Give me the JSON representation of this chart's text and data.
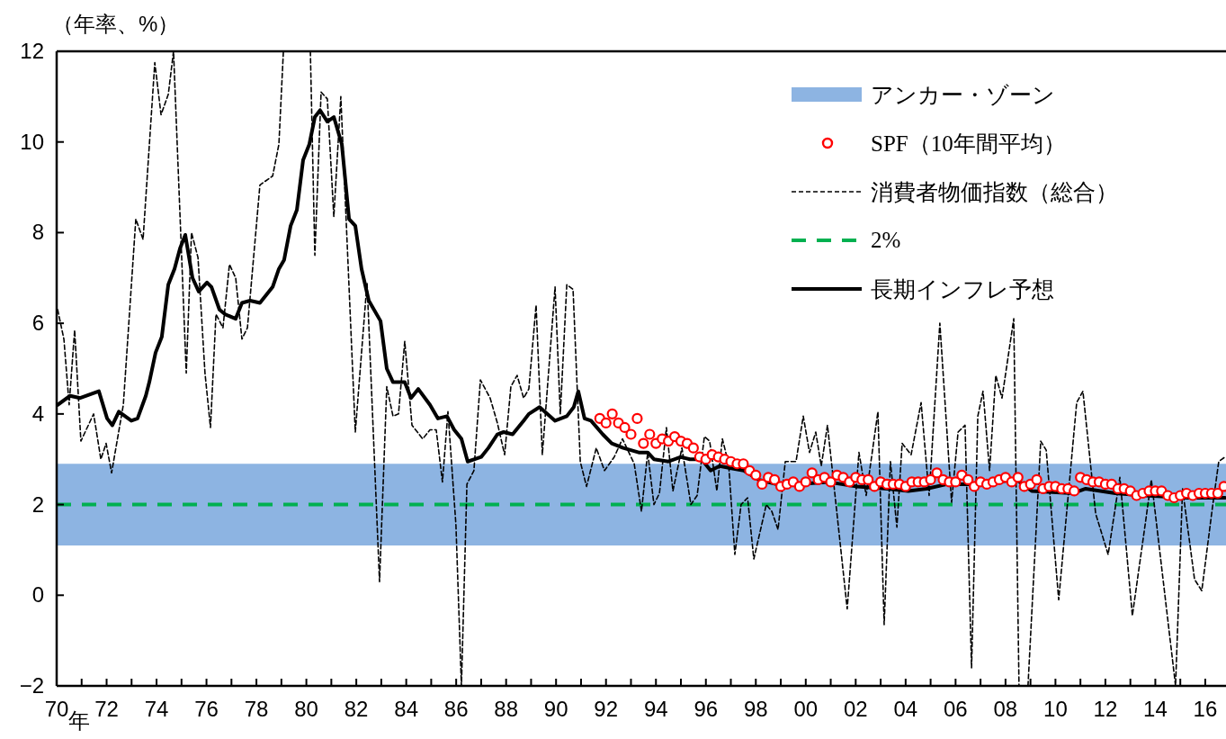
{
  "chart_data": {
    "type": "line",
    "ylabel": "（年率、%）",
    "annotations": [
      "年"
    ],
    "xlim": [
      1970,
      2016.83
    ],
    "xticks": [
      {
        "value": 1970,
        "label": "70"
      },
      {
        "value": 1971,
        "label": null
      },
      {
        "value": 1972,
        "label": "72"
      },
      {
        "value": 1973,
        "label": null
      },
      {
        "value": 1974,
        "label": "74"
      },
      {
        "value": 1975,
        "label": null
      },
      {
        "value": 1976,
        "label": "76"
      },
      {
        "value": 1977,
        "label": null
      },
      {
        "value": 1978,
        "label": "78"
      },
      {
        "value": 1979,
        "label": null
      },
      {
        "value": 1980,
        "label": "80"
      },
      {
        "value": 1981,
        "label": null
      },
      {
        "value": 1982,
        "label": "82"
      },
      {
        "value": 1983,
        "label": null
      },
      {
        "value": 1984,
        "label": "84"
      },
      {
        "value": 1985,
        "label": null
      },
      {
        "value": 1986,
        "label": "86"
      },
      {
        "value": 1987,
        "label": null
      },
      {
        "value": 1988,
        "label": "88"
      },
      {
        "value": 1989,
        "label": null
      },
      {
        "value": 1990,
        "label": "90"
      },
      {
        "value": 1991,
        "label": null
      },
      {
        "value": 1992,
        "label": "92"
      },
      {
        "value": 1993,
        "label": null
      },
      {
        "value": 1994,
        "label": "94"
      },
      {
        "value": 1995,
        "label": null
      },
      {
        "value": 1996,
        "label": "96"
      },
      {
        "value": 1997,
        "label": null
      },
      {
        "value": 1998,
        "label": "98"
      },
      {
        "value": 1999,
        "label": null
      },
      {
        "value": 2000,
        "label": "00"
      },
      {
        "value": 2001,
        "label": null
      },
      {
        "value": 2002,
        "label": "02"
      },
      {
        "value": 2003,
        "label": null
      },
      {
        "value": 2004,
        "label": "04"
      },
      {
        "value": 2005,
        "label": null
      },
      {
        "value": 2006,
        "label": "06"
      },
      {
        "value": 2007,
        "label": null
      },
      {
        "value": 2008,
        "label": "08"
      },
      {
        "value": 2009,
        "label": null
      },
      {
        "value": 2010,
        "label": "10"
      },
      {
        "value": 2011,
        "label": null
      },
      {
        "value": 2012,
        "label": "12"
      },
      {
        "value": 2013,
        "label": null
      },
      {
        "value": 2014,
        "label": "14"
      },
      {
        "value": 2015,
        "label": null
      },
      {
        "value": 2016,
        "label": "16"
      }
    ],
    "ylim": [
      -2,
      12
    ],
    "yticks": [
      {
        "value": -2,
        "label": "−2"
      },
      0,
      2,
      4,
      6,
      8,
      10,
      12
    ],
    "legend": "top right",
    "bands": [
      {
        "axis": "y",
        "from": 1.1,
        "to": 2.9,
        "label": "アンカー・ゾーン",
        "color": "#8db4e2"
      }
    ],
    "ref_lines": [
      {
        "axis": "y",
        "value": 2,
        "label": "2%",
        "color": "#00b050",
        "line_style": "dashed"
      }
    ],
    "series": [
      {
        "name": "SPF（10年間平均）",
        "type": "scatter",
        "color": "#ff0000",
        "marker": "circle",
        "x": [
          1991.75,
          1992,
          1992.25,
          1992.5,
          1992.75,
          1993,
          1993.25,
          1993.5,
          1993.75,
          1994,
          1994.25,
          1994.5,
          1994.75,
          1995,
          1995.25,
          1995.5,
          1995.75,
          1996,
          1996.25,
          1996.5,
          1996.75,
          1997,
          1997.25,
          1997.5,
          1997.75,
          1998,
          1998.25,
          1998.5,
          1998.75,
          1999,
          1999.25,
          1999.5,
          1999.75,
          2000,
          2000.25,
          2000.5,
          2000.75,
          2001,
          2001.25,
          2001.5,
          2001.75,
          2002,
          2002.25,
          2002.5,
          2002.75,
          2003,
          2003.25,
          2003.5,
          2003.75,
          2004,
          2004.25,
          2004.5,
          2004.75,
          2005,
          2005.25,
          2005.5,
          2005.75,
          2006,
          2006.25,
          2006.5,
          2006.75,
          2007,
          2007.25,
          2007.5,
          2007.75,
          2008,
          2008.25,
          2008.5,
          2008.75,
          2009,
          2009.25,
          2009.5,
          2009.75,
          2010,
          2010.25,
          2010.5,
          2010.75,
          2011,
          2011.25,
          2011.5,
          2011.75,
          2012,
          2012.25,
          2012.5,
          2012.75,
          2013,
          2013.25,
          2013.5,
          2013.75,
          2014,
          2014.25,
          2014.5,
          2014.75,
          2015,
          2015.25,
          2015.5,
          2015.75,
          2016,
          2016.25,
          2016.5,
          2016.75
        ],
        "values": [
          3.9,
          3.8,
          4.0,
          3.8,
          3.7,
          3.55,
          3.9,
          3.35,
          3.55,
          3.35,
          3.45,
          3.4,
          3.5,
          3.4,
          3.35,
          3.25,
          3.05,
          3.0,
          3.1,
          3.05,
          3.0,
          2.95,
          2.9,
          2.9,
          2.75,
          2.65,
          2.45,
          2.6,
          2.55,
          2.4,
          2.45,
          2.5,
          2.4,
          2.5,
          2.7,
          2.55,
          2.6,
          2.5,
          2.65,
          2.6,
          2.5,
          2.6,
          2.55,
          2.55,
          2.4,
          2.5,
          2.45,
          2.45,
          2.45,
          2.4,
          2.5,
          2.5,
          2.5,
          2.55,
          2.7,
          2.55,
          2.5,
          2.5,
          2.65,
          2.55,
          2.4,
          2.5,
          2.45,
          2.5,
          2.55,
          2.6,
          2.5,
          2.6,
          2.4,
          2.45,
          2.55,
          2.35,
          2.4,
          2.4,
          2.35,
          2.35,
          2.3,
          2.6,
          2.55,
          2.5,
          2.5,
          2.45,
          2.45,
          2.35,
          2.35,
          2.3,
          2.2,
          2.25,
          2.3,
          2.3,
          2.3,
          2.2,
          2.15,
          2.2,
          2.25,
          2.2,
          2.25,
          2.25,
          2.25,
          2.25,
          2.4
        ]
      },
      {
        "name": "消費者物価指数（総合）",
        "color": "#000000",
        "marker": "none",
        "line_style": "dashed",
        "x": [
          1970.04,
          1970.29,
          1970.5,
          1970.72,
          1970.97,
          1971.48,
          1971.77,
          1971.98,
          1972.2,
          1972.67,
          1973.17,
          1973.46,
          1973.93,
          1974.18,
          1974.47,
          1974.68,
          1975.19,
          1975.4,
          1975.66,
          1975.94,
          1976.16,
          1976.38,
          1976.66,
          1976.92,
          1977.17,
          1977.42,
          1977.64,
          1978.14,
          1978.65,
          1978.9,
          1979.08,
          1979.6,
          1980.16,
          1980.34,
          1980.59,
          1980.84,
          1981.1,
          1981.38,
          1981.96,
          1982.43,
          1982.93,
          1983.22,
          1983.47,
          1983.69,
          1983.94,
          1984.23,
          1984.66,
          1984.95,
          1985.2,
          1985.45,
          1985.67,
          1985.99,
          1986.21,
          1986.43,
          1986.71,
          1986.97,
          1987.36,
          1987.65,
          1987.94,
          1988.19,
          1988.44,
          1988.7,
          1988.91,
          1989.2,
          1989.45,
          1989.96,
          1990.17,
          1990.43,
          1990.68,
          1990.97,
          1991.22,
          1991.61,
          1991.94,
          1992.33,
          1992.66,
          1993.13,
          1993.42,
          1993.67,
          1993.92,
          1994.14,
          1994.42,
          1994.68,
          1995.04,
          1995.4,
          1995.65,
          1995.94,
          1996.15,
          1996.44,
          1996.66,
          1996.91,
          1997.16,
          1997.41,
          1997.67,
          1997.92,
          1998.42,
          1998.64,
          1998.89,
          1999.18,
          1999.61,
          1999.9,
          2000.15,
          2000.4,
          2000.62,
          2000.87,
          2001.66,
          2002.13,
          2002.42,
          2002.89,
          2003.14,
          2003.39,
          2003.65,
          2003.86,
          2004.22,
          2004.62,
          2004.94,
          2005.37,
          2005.84,
          2006.1,
          2006.38,
          2006.64,
          2006.89,
          2007.1,
          2007.36,
          2007.61,
          2007.86,
          2008.33,
          2008.54,
          2008.72,
          2008.9,
          2009.41,
          2009.63,
          2010.13,
          2010.85,
          2011.1,
          2011.61,
          2012.11,
          2012.58,
          2013.08,
          2013.59,
          2013.84,
          2014.81,
          2015.09,
          2015.57,
          2015.86,
          2016.29,
          2016.54,
          2016.79
        ],
        "values": [
          6.3,
          5.65,
          4.2,
          5.85,
          3.4,
          4.0,
          3.0,
          3.35,
          2.7,
          4.2,
          8.3,
          7.85,
          11.75,
          10.6,
          11.05,
          12,
          4.9,
          8.0,
          7.45,
          4.9,
          3.7,
          6.2,
          5.9,
          7.3,
          7.0,
          5.65,
          5.9,
          9.05,
          9.25,
          9.95,
          12,
          null,
          12,
          7.5,
          11.1,
          10.95,
          8.35,
          11.0,
          3.6,
          6.9,
          0.3,
          4.6,
          3.95,
          4.0,
          5.6,
          3.75,
          3.45,
          3.65,
          3.65,
          2.5,
          4.05,
          1.55,
          -2,
          2.45,
          2.75,
          4.75,
          4.35,
          3.8,
          3.1,
          4.6,
          4.85,
          4.35,
          4.55,
          6.4,
          3.1,
          6.8,
          4.0,
          6.85,
          6.75,
          2.95,
          2.4,
          3.25,
          2.75,
          3.05,
          3.45,
          2.9,
          1.85,
          3.15,
          2.0,
          2.25,
          3.7,
          2.3,
          3.25,
          2.0,
          2.2,
          3.5,
          3.4,
          2.3,
          3.45,
          2.9,
          0.9,
          2.0,
          2.15,
          0.8,
          2.0,
          1.85,
          1.45,
          2.95,
          2.95,
          3.95,
          3.15,
          3.6,
          2.85,
          3.75,
          -0.3,
          3.15,
          2.2,
          4.05,
          -0.65,
          2.95,
          1.5,
          3.35,
          3.1,
          4.25,
          2.2,
          6.0,
          2.05,
          3.6,
          3.75,
          -1.6,
          3.95,
          4.5,
          2.75,
          4.85,
          4.35,
          6.1,
          -2,
          null,
          -2,
          3.4,
          3.2,
          -0.1,
          4.25,
          4.5,
          1.8,
          0.9,
          2.6,
          -0.45,
          1.55,
          2.55,
          -2,
          2.35,
          0.35,
          0.1,
          1.95,
          2.95,
          3.05
        ]
      },
      {
        "name": "長期インフレ予想",
        "color": "#000000",
        "marker": "none",
        "line_style": "solid",
        "x": [
          1970.04,
          1970.54,
          1970.94,
          1971.69,
          1972.02,
          1972.23,
          1972.49,
          1972.99,
          1973.24,
          1973.57,
          1973.71,
          1973.96,
          1974.21,
          1974.47,
          1974.72,
          1974.94,
          1975.15,
          1975.44,
          1975.69,
          1976.02,
          1976.2,
          1976.52,
          1976.74,
          1977.17,
          1977.42,
          1977.75,
          1978.14,
          1978.65,
          1978.9,
          1979.11,
          1979.37,
          1979.62,
          1979.87,
          1980.12,
          1980.34,
          1980.55,
          1980.84,
          1981.1,
          1981.42,
          1981.71,
          1981.96,
          1982.21,
          1982.5,
          1982.97,
          1983.22,
          1983.47,
          1983.94,
          1984.19,
          1984.48,
          1984.95,
          1985.27,
          1985.63,
          1985.92,
          1986.21,
          1986.46,
          1987.0,
          1987.29,
          1987.65,
          1987.9,
          1988.26,
          1988.7,
          1988.91,
          1989.34,
          1989.96,
          1990.43,
          1990.71,
          1990.89,
          1991.14,
          1991.4,
          1991.87,
          1992.23,
          1992.69,
          1993.31,
          1993.67,
          1993.92,
          1994.5,
          1995.0,
          1995.36,
          1995.83,
          1996.19,
          1996.55,
          1997.02,
          1997.52,
          1998.1,
          1998.82,
          1999.68,
          2000.87,
          2002.06,
          2003.28,
          2004.11,
          2004.83,
          2005.66,
          2006.89,
          2008.44,
          2009.05,
          2010.71,
          2011.21,
          2012.4,
          2013.59,
          2015.28,
          2016.79
        ],
        "values": [
          4.2,
          4.4,
          4.35,
          4.5,
          3.9,
          3.75,
          4.05,
          3.85,
          3.9,
          4.4,
          4.7,
          5.35,
          5.7,
          6.85,
          7.2,
          7.65,
          7.95,
          7.0,
          6.7,
          6.9,
          6.8,
          6.3,
          6.2,
          6.1,
          6.45,
          6.5,
          6.45,
          6.8,
          7.2,
          7.4,
          8.15,
          8.5,
          9.6,
          9.95,
          10.55,
          10.7,
          10.45,
          10.55,
          9.95,
          8.3,
          8.15,
          7.2,
          6.5,
          6.05,
          5.0,
          4.7,
          4.7,
          4.35,
          4.55,
          4.2,
          3.9,
          3.95,
          3.65,
          3.45,
          2.95,
          3.05,
          3.25,
          3.55,
          3.6,
          3.55,
          3.85,
          4.0,
          4.15,
          3.85,
          3.95,
          4.15,
          4.5,
          3.9,
          3.85,
          3.55,
          3.35,
          3.25,
          3.15,
          3.15,
          3.0,
          2.95,
          3.05,
          3.0,
          3.0,
          2.75,
          2.85,
          2.8,
          2.75,
          2.55,
          2.45,
          2.45,
          2.5,
          2.4,
          2.35,
          2.3,
          2.35,
          2.45,
          2.45,
          2.55,
          2.3,
          2.25,
          2.35,
          2.25,
          2.2,
          2.15,
          2.15
        ]
      }
    ]
  }
}
